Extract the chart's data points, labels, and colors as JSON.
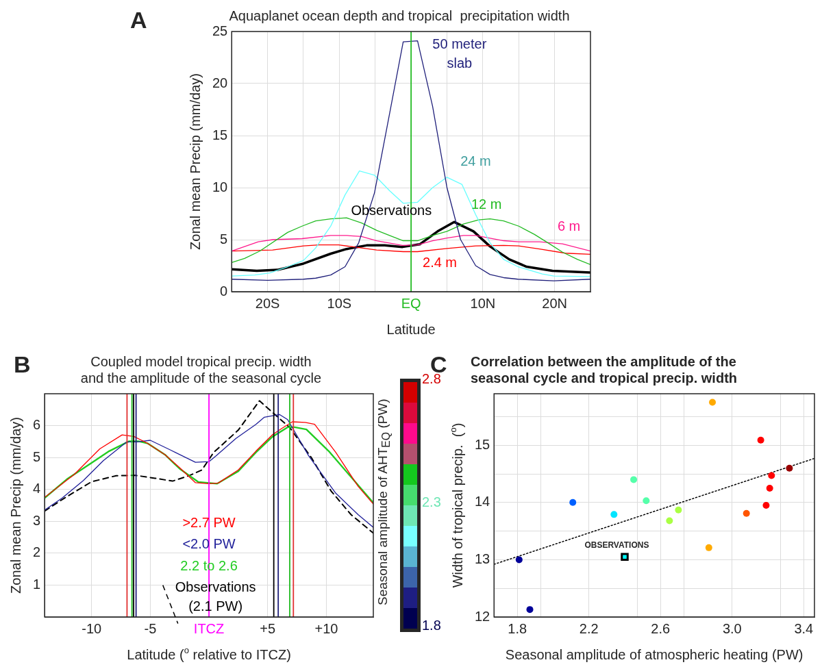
{
  "chart_data": [
    {
      "type": "line",
      "title": "Aquaplanet ocean depth and tropical  precipitation width",
      "xlabel": "Latitude",
      "ylabel": "Zonal mean Precip (mm/day)",
      "annotations": [
        "A"
      ],
      "xlim": [
        -25,
        25
      ],
      "xticks": [
        {
          "value": -20,
          "label": "20S"
        },
        {
          "value": -15,
          "label": null
        },
        {
          "value": -10,
          "label": "10S"
        },
        {
          "value": -5,
          "label": null
        },
        {
          "value": 0,
          "label": "EQ"
        },
        {
          "value": 5,
          "label": null
        },
        {
          "value": 10,
          "label": "10N"
        },
        {
          "value": 15,
          "label": null
        },
        {
          "value": 20,
          "label": "20N"
        }
      ],
      "ylim": [
        0,
        25
      ],
      "yticks": [
        0,
        5,
        10,
        15,
        20,
        25
      ],
      "grid": true,
      "ref_lines": [
        {
          "axis": "x",
          "value": 0,
          "color": "#22bb22"
        }
      ],
      "series": [
        {
          "name": "50 meter slab",
          "color": "#1f1f7a",
          "x": [
            -25,
            -20,
            -15,
            -13.3,
            -11.2,
            -9.2,
            -7.3,
            -5.1,
            -3.0,
            -1.1,
            0.9,
            3.0,
            5.0,
            6.9,
            9.0,
            11.0,
            12.9,
            14.9,
            19.9,
            25
          ],
          "values": [
            1.2,
            1.1,
            1.2,
            1.3,
            1.6,
            2.4,
            4.7,
            9.5,
            17.1,
            24.0,
            24.1,
            17.8,
            10.0,
            5.0,
            2.5,
            1.65,
            1.35,
            1.2,
            1.05,
            1.2
          ]
        },
        {
          "name": "24 m",
          "color": "#66ffff",
          "x": [
            -25,
            -21.8,
            -19.7,
            -17.2,
            -15,
            -13.3,
            -11.2,
            -9.2,
            -7.2,
            -5.1,
            -3,
            -1.1,
            0.9,
            3,
            5,
            7.1,
            9,
            11,
            12.9,
            14.9,
            18.3,
            19.9,
            25
          ],
          "values": [
            1.5,
            1.6,
            1.8,
            2.4,
            3.0,
            4.2,
            6.3,
            9.3,
            11.6,
            11.2,
            9.7,
            8.5,
            8.6,
            10.0,
            11.0,
            10.3,
            7.4,
            4.7,
            3.1,
            2.4,
            1.7,
            1.5,
            1.45
          ]
        },
        {
          "name": "12 m",
          "color": "#22bb22",
          "x": [
            -25,
            -23.2,
            -21.1,
            -17.2,
            -15.2,
            -13.3,
            -11.2,
            -9,
            -6.9,
            -4.8,
            -3,
            -1.1,
            0.9,
            3,
            5,
            7.3,
            9.4,
            11,
            12.9,
            15,
            17.2,
            19.3,
            21.1,
            23.2,
            25
          ],
          "values": [
            2.8,
            3.2,
            3.9,
            5.7,
            6.3,
            6.8,
            7.0,
            7.1,
            6.6,
            5.9,
            5.4,
            4.9,
            4.9,
            5.4,
            5.8,
            6.5,
            6.9,
            7.0,
            6.8,
            6.3,
            5.5,
            4.6,
            3.8,
            3.1,
            2.6
          ]
        },
        {
          "name": "6 m",
          "color": "#ff1a8c",
          "x": [
            -25,
            -21.3,
            -19.3,
            -15.2,
            -11.2,
            -9,
            -6.9,
            -4.8,
            -1.2,
            0.9,
            3,
            5,
            7.3,
            9,
            12.9,
            15,
            17.9,
            21.1,
            25
          ],
          "values": [
            3.9,
            4.8,
            5.0,
            5.1,
            5.4,
            5.4,
            5.3,
            4.9,
            4.45,
            4.5,
            4.9,
            5.15,
            5.4,
            5.4,
            4.9,
            4.8,
            4.8,
            4.6,
            3.9
          ]
        },
        {
          "name": "2.4 m",
          "color": "#ff0000",
          "x": [
            -25,
            -19.3,
            -15,
            -12.8,
            -10.1,
            -6.9,
            -4.8,
            -1.1,
            0.9,
            5,
            9,
            12.9,
            15,
            17.9,
            21.5,
            25
          ],
          "values": [
            3.9,
            4.0,
            4.4,
            4.5,
            4.5,
            4.2,
            4.0,
            3.85,
            3.85,
            4.15,
            4.4,
            4.45,
            4.4,
            4.1,
            3.7,
            3.6
          ]
        },
        {
          "name": "Observations",
          "color": "#000000",
          "x": [
            -25,
            -21.5,
            -18.6,
            -15,
            -11.2,
            -9,
            -6.2,
            -3.7,
            -1.2,
            1.2,
            3.7,
            6,
            8.7,
            11,
            13.7,
            16.1,
            19.7,
            25
          ],
          "values": [
            2.15,
            2.0,
            2.1,
            2.7,
            3.65,
            4.1,
            4.45,
            4.45,
            4.3,
            4.55,
            5.8,
            6.7,
            5.8,
            4.35,
            3.1,
            2.4,
            2.0,
            1.85
          ]
        }
      ]
    },
    {
      "type": "line",
      "title": "Coupled model tropical precip. width\nand the amplitude of the seasonal cycle",
      "xlabel": "Latitude ($^{o}$ relative to ITCZ)",
      "ylabel": "Zonal mean Precip (mm/day)",
      "annotations": [
        "B"
      ],
      "xlim": [
        -14,
        14
      ],
      "xticks": [
        {
          "value": -10,
          "label": "-10"
        },
        {
          "value": -5,
          "label": "-5"
        },
        {
          "value": 0,
          "label": "ITCZ"
        },
        {
          "value": 5,
          "label": "+5"
        },
        {
          "value": 10,
          "label": "+10"
        }
      ],
      "ylim": [
        0,
        7
      ],
      "yticks": [
        1,
        2,
        3,
        4,
        5,
        6
      ],
      "grid": true,
      "clabel": "Seasonal amplitude of AHT$_{EQ}$ (PW)",
      "clim": [
        1.8,
        2.8
      ],
      "cticks": [
        1.8,
        2.3,
        2.8
      ],
      "ref_lines": [
        {
          "axis": "x",
          "value": -6.98,
          "color": "#e03030"
        },
        {
          "axis": "x",
          "value": -6.56,
          "color": "#22bb22"
        },
        {
          "axis": "x",
          "value": -6.42,
          "color": "#000000"
        },
        {
          "axis": "x",
          "value": -6.21,
          "color": "#1f1f7a"
        },
        {
          "axis": "x",
          "value": 0,
          "color": "#ff00ff"
        },
        {
          "axis": "x",
          "value": 5.52,
          "color": "#000000"
        },
        {
          "axis": "x",
          "value": 5.9,
          "color": "#1f1f7a"
        },
        {
          "axis": "x",
          "value": 6.88,
          "color": "#22bb22"
        },
        {
          "axis": "x",
          "value": 7.19,
          "color": "#e03030"
        }
      ],
      "series": [
        {
          "name": ">2.7 PW",
          "color": "#ff0000",
          "x": [
            -14,
            -11.5,
            -9.3,
            -7.4,
            -6.4,
            -5.3,
            -3.75,
            -2.5,
            -1.15,
            0,
            0.8,
            2.5,
            4,
            5.4,
            6.15,
            7.1,
            8.2,
            9,
            10.8,
            12.7,
            14
          ],
          "values": [
            3.75,
            4.46,
            5.27,
            5.71,
            5.66,
            5.46,
            5.09,
            4.68,
            4.21,
            4.18,
            4.2,
            4.61,
            5.2,
            5.71,
            5.9,
            6.12,
            6.1,
            6.04,
            5.16,
            4.1,
            3.54
          ]
        },
        {
          "name": "<2.0 PW",
          "color": "#1f1f99",
          "x": [
            -14,
            -12.5,
            -10.7,
            -9,
            -7,
            -6.1,
            -5,
            -3.3,
            -1.15,
            0,
            0.6,
            2.3,
            4,
            4.7,
            6,
            6.7,
            8.5,
            10.8,
            12.7,
            14
          ],
          "values": [
            3.35,
            3.73,
            4.28,
            4.9,
            5.49,
            5.49,
            5.54,
            5.24,
            4.85,
            4.87,
            5.05,
            5.6,
            6.04,
            6.26,
            6.35,
            6.19,
            5.05,
            3.88,
            3.21,
            2.81
          ]
        },
        {
          "name": "2.2 to 2.6",
          "color": "#22cc22",
          "x": [
            -14,
            -12.1,
            -10,
            -8.5,
            -6.8,
            -6.0,
            -5.2,
            -3.75,
            -2.5,
            -0.9,
            0.7,
            2.5,
            4,
            5.4,
            6.7,
            7.3,
            8.3,
            10.2,
            12.1,
            14
          ],
          "values": [
            3.73,
            4.32,
            4.83,
            5.2,
            5.51,
            5.51,
            5.44,
            5.09,
            4.65,
            4.23,
            4.18,
            4.57,
            5.16,
            5.65,
            5.95,
            5.95,
            5.88,
            5.2,
            4.39,
            3.58
          ]
        },
        {
          "name": "Observations (2.1 PW)",
          "color": "#000000",
          "line_style": "dashed",
          "x": [
            -14,
            -12.3,
            -10,
            -7.9,
            -6.25,
            -4.6,
            -3.1,
            -1.7,
            -0.6,
            0.4,
            2.5,
            4.3,
            5.3,
            6.9,
            8.75,
            10.4,
            12.1,
            14
          ],
          "values": [
            3.32,
            3.73,
            4.24,
            4.43,
            4.44,
            4.35,
            4.26,
            4.43,
            4.61,
            5.16,
            5.86,
            6.78,
            6.45,
            5.93,
            4.98,
            3.95,
            3.21,
            2.63
          ]
        }
      ]
    },
    {
      "type": "scatter",
      "title": "Correlation between the amplitude of the\nseasonal cycle and tropical precip. width",
      "xlabel": "Seasonal amplitude of atmospheric heating (PW)",
      "ylabel": "Width of tropical precip.  ($^{o}$)",
      "annotations": [
        "C"
      ],
      "xlim": [
        1.67,
        3.46
      ],
      "xticks": [
        1.8,
        {
          "value": 1.93,
          "label": null
        },
        2.2,
        {
          "value": 2.47,
          "label": null
        },
        2.6,
        {
          "value": 2.73,
          "label": null
        },
        {
          "value": 3.0,
          "label": "3.0"
        },
        {
          "value": 3.27,
          "label": null
        },
        3.4
      ],
      "ylim": [
        12,
        15.9
      ],
      "yticks": [
        12,
        {
          "value": 12.5,
          "label": null
        },
        13,
        {
          "value": 13.5,
          "label": null
        },
        14,
        {
          "value": 14.5,
          "label": null
        },
        15,
        {
          "value": 15.5,
          "label": null
        }
      ],
      "grid": true,
      "series": [
        {
          "marker": "circle",
          "x": [
            1.81,
            1.87,
            2.11,
            2.34,
            2.45,
            2.52,
            2.65,
            2.7,
            2.87,
            2.89,
            3.08,
            3.16,
            3.19,
            3.21,
            3.22,
            3.32
          ],
          "values": [
            13.0,
            12.13,
            14.0,
            13.79,
            14.4,
            14.03,
            13.68,
            13.87,
            13.21,
            15.75,
            13.81,
            15.09,
            13.95,
            14.25,
            14.47,
            14.6
          ],
          "colors": [
            "#000099",
            "#000099",
            "#0060ff",
            "#00e5ff",
            "#55ffaa",
            "#55ffaa",
            "#aaff44",
            "#aaff44",
            "#ffaa00",
            "#ffaa00",
            "#ff5500",
            "#ff0000",
            "#ff0000",
            "#ff0000",
            "#ff0000",
            "#990000"
          ]
        },
        {
          "name": "OBSERVATIONS",
          "color": "#00ffff",
          "marker": "square",
          "x": [
            2.4
          ],
          "values": [
            13.05
          ]
        },
        {
          "type": "line",
          "color": "#000000",
          "line_style": "dotted",
          "x": [
            1.67,
            3.46
          ],
          "values": [
            12.92,
            14.77
          ]
        }
      ]
    }
  ]
}
